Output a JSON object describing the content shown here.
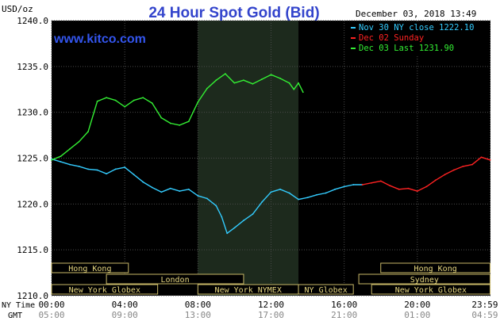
{
  "chart_data": {
    "type": "line",
    "title": "24 Hour Spot Gold (Bid)",
    "watermark": "www.kitco.com",
    "timestamp": "December 03, 2018 13:49",
    "ylabel": "USD/oz",
    "ylim": [
      1210,
      1240
    ],
    "y_ticks": [
      "1210.0",
      "1215.0",
      "1220.0",
      "1225.0",
      "1230.0",
      "1235.0",
      "1240.0"
    ],
    "x_ticks_ny": [
      "00:00",
      "04:00",
      "08:00",
      "12:00",
      "16:00",
      "20:00",
      "23:59"
    ],
    "x_ticks_gmt": [
      "05:00",
      "09:00",
      "13:00",
      "17:00",
      "21:00",
      "01:00",
      "04:59"
    ],
    "x_tick_hours": [
      0,
      4,
      8,
      12,
      16,
      20,
      23.98
    ],
    "row_labels": {
      "ny": "NY Time",
      "gmt": "GMT"
    },
    "shaded_session": {
      "label": "New York NYMEX",
      "start_hour": 8.0,
      "end_hour": 13.5
    },
    "legend": [
      {
        "label": "Nov 30 NY close 1222.10",
        "color": "#33ccff"
      },
      {
        "label": "Dec 02 Sunday",
        "color": "#ff2222"
      },
      {
        "label": "Dec 03 Last 1231.90",
        "color": "#33ee33"
      }
    ],
    "market_rows": [
      [
        {
          "label": "Hong Kong",
          "start": 0,
          "end": 4.2
        },
        {
          "label": "Hong Kong",
          "start": 18.0,
          "end": 23.98
        }
      ],
      [
        {
          "label": "London",
          "start": 3.0,
          "end": 10.5
        },
        {
          "label": "Sydney",
          "start": 16.8,
          "end": 23.98
        }
      ],
      [
        {
          "label": "New York Globex",
          "start": 0,
          "end": 5.8
        },
        {
          "label": "New York NYMEX",
          "start": 8.0,
          "end": 13.5
        },
        {
          "label": "NY Globex",
          "start": 13.5,
          "end": 16.5
        },
        {
          "label": "New York Globex",
          "start": 17.5,
          "end": 23.98
        }
      ]
    ],
    "series": [
      {
        "name": "Nov 30 NY close 1222.10",
        "color": "#33ccff",
        "x": [
          0,
          0.5,
          1,
          1.5,
          2,
          2.5,
          3,
          3.5,
          4,
          4.5,
          5,
          5.5,
          6,
          6.5,
          7,
          7.5,
          8,
          8.5,
          9,
          9.3,
          9.6,
          10,
          10.5,
          11,
          11.5,
          12,
          12.5,
          13,
          13.5,
          14,
          14.5,
          15,
          15.5,
          16,
          16.5,
          17
        ],
        "y": [
          1224.9,
          1224.6,
          1224.3,
          1224.1,
          1223.8,
          1223.7,
          1223.3,
          1223.8,
          1224.0,
          1223.2,
          1222.4,
          1221.8,
          1221.3,
          1221.7,
          1221.4,
          1221.6,
          1220.9,
          1220.6,
          1219.8,
          1218.6,
          1216.8,
          1217.4,
          1218.2,
          1218.9,
          1220.2,
          1221.3,
          1221.6,
          1221.2,
          1220.5,
          1220.7,
          1221.0,
          1221.2,
          1221.6,
          1221.9,
          1222.1,
          1222.1
        ]
      },
      {
        "name": "Dec 02 Sunday",
        "color": "#ff2222",
        "x": [
          17,
          17.5,
          18,
          18.5,
          19,
          19.5,
          20,
          20.5,
          21,
          21.5,
          22,
          22.5,
          23,
          23.5,
          23.98
        ],
        "y": [
          1222.1,
          1222.3,
          1222.5,
          1222.0,
          1221.6,
          1221.7,
          1221.4,
          1221.9,
          1222.6,
          1223.2,
          1223.7,
          1224.1,
          1224.3,
          1225.1,
          1224.8
        ]
      },
      {
        "name": "Dec 03 Last 1231.90",
        "color": "#33ee33",
        "x": [
          0,
          0.5,
          1,
          1.5,
          2,
          2.5,
          3,
          3.5,
          4,
          4.5,
          5,
          5.5,
          6,
          6.5,
          7,
          7.5,
          8,
          8.5,
          9,
          9.5,
          10,
          10.5,
          11,
          11.5,
          12,
          12.5,
          13,
          13.25,
          13.5,
          13.75
        ],
        "y": [
          1224.8,
          1225.2,
          1226.0,
          1226.8,
          1227.9,
          1231.2,
          1231.6,
          1231.3,
          1230.6,
          1231.3,
          1231.6,
          1231.0,
          1229.4,
          1228.8,
          1228.6,
          1229.0,
          1231.1,
          1232.6,
          1233.5,
          1234.2,
          1233.2,
          1233.5,
          1233.1,
          1233.6,
          1234.1,
          1233.7,
          1233.2,
          1232.5,
          1233.2,
          1232.2
        ]
      }
    ]
  }
}
